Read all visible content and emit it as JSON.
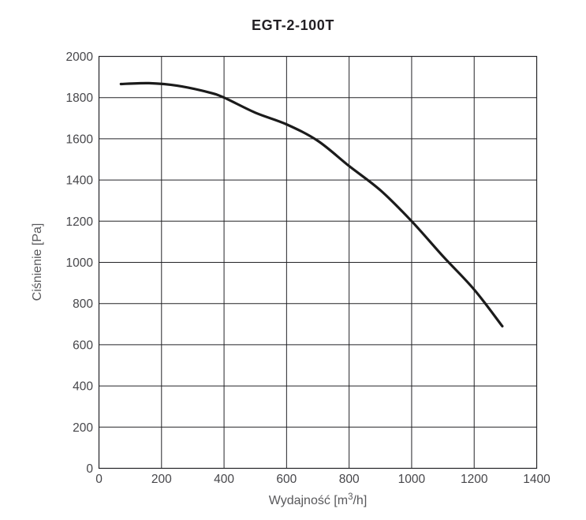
{
  "chart_data": {
    "type": "line",
    "title": "EGT-2-100T",
    "xlabel": "Wydajność [m³/h]",
    "ylabel": "Ciśnienie [Pa]",
    "xlim": [
      0,
      1400
    ],
    "ylim": [
      0,
      2000
    ],
    "x_ticks": [
      0,
      200,
      400,
      600,
      800,
      1000,
      1200,
      1400
    ],
    "y_ticks": [
      0,
      200,
      400,
      600,
      800,
      1000,
      1200,
      1400,
      1600,
      1800,
      2000
    ],
    "grid": true,
    "legend": "none",
    "series": [
      {
        "name": "EGT-2-100T",
        "points": [
          [
            70,
            1866
          ],
          [
            160,
            1870
          ],
          [
            250,
            1858
          ],
          [
            350,
            1826
          ],
          [
            400,
            1800
          ],
          [
            500,
            1727
          ],
          [
            600,
            1670
          ],
          [
            700,
            1590
          ],
          [
            800,
            1468
          ],
          [
            900,
            1350
          ],
          [
            1000,
            1200
          ],
          [
            1100,
            1030
          ],
          [
            1200,
            868
          ],
          [
            1290,
            690
          ]
        ]
      }
    ],
    "colors": {
      "background": "#ffffff",
      "grid": "#232327",
      "curve": "#1b1b1b",
      "tick_label": "#46464a",
      "axis_label": "#58585b",
      "title": "#232025"
    }
  }
}
